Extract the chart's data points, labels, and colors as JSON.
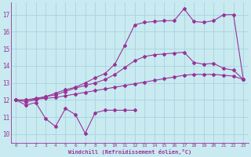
{
  "background_color": "#c8eaf0",
  "grid_color": "#aad4dc",
  "line_color": "#993399",
  "xlim": [
    -0.5,
    23.5
  ],
  "ylim": [
    9.5,
    17.7
  ],
  "xticks": [
    0,
    1,
    2,
    3,
    4,
    5,
    6,
    7,
    8,
    9,
    10,
    11,
    12,
    13,
    14,
    15,
    16,
    17,
    18,
    19,
    20,
    21,
    22,
    23
  ],
  "yticks": [
    10,
    11,
    12,
    13,
    14,
    15,
    16,
    17
  ],
  "xlabel": "Windchill (Refroidissement éolien,°C)",
  "series_zigzag": {
    "x": [
      0,
      1,
      2,
      3,
      4,
      5,
      6,
      7,
      8,
      9,
      10,
      11,
      12
    ],
    "y": [
      12.0,
      11.7,
      11.85,
      10.9,
      10.45,
      11.5,
      11.15,
      10.05,
      11.25,
      11.4,
      11.4,
      11.4,
      11.4
    ]
  },
  "series_lower": {
    "x": [
      0,
      1,
      2,
      3,
      4,
      5,
      6,
      7,
      8,
      9,
      10,
      11,
      12,
      13,
      14,
      15,
      16,
      17,
      18,
      19,
      20,
      21,
      22,
      23
    ],
    "y": [
      12.0,
      12.0,
      12.05,
      12.1,
      12.15,
      12.25,
      12.35,
      12.45,
      12.55,
      12.65,
      12.75,
      12.85,
      12.95,
      13.05,
      13.15,
      13.25,
      13.35,
      13.45,
      13.5,
      13.5,
      13.5,
      13.45,
      13.4,
      13.2
    ]
  },
  "series_middle": {
    "x": [
      0,
      1,
      2,
      3,
      4,
      5,
      6,
      7,
      8,
      9,
      10,
      11,
      12,
      13,
      14,
      15,
      16,
      17,
      18,
      19,
      20,
      21,
      22,
      23
    ],
    "y": [
      12.0,
      12.0,
      12.1,
      12.2,
      12.3,
      12.5,
      12.7,
      12.85,
      13.0,
      13.2,
      13.5,
      13.9,
      14.3,
      14.55,
      14.65,
      14.7,
      14.75,
      14.8,
      14.2,
      14.1,
      14.15,
      13.85,
      13.75,
      13.2
    ]
  },
  "series_top": {
    "x": [
      0,
      1,
      2,
      3,
      4,
      5,
      6,
      7,
      8,
      9,
      10,
      11,
      12,
      13,
      14,
      15,
      16,
      17,
      18,
      19,
      20,
      21,
      22,
      23
    ],
    "y": [
      12.0,
      11.9,
      12.0,
      12.2,
      12.4,
      12.6,
      12.75,
      13.0,
      13.3,
      13.55,
      14.1,
      15.2,
      16.4,
      16.55,
      16.6,
      16.65,
      16.65,
      17.35,
      16.6,
      16.55,
      16.65,
      17.0,
      17.0,
      13.2
    ]
  }
}
